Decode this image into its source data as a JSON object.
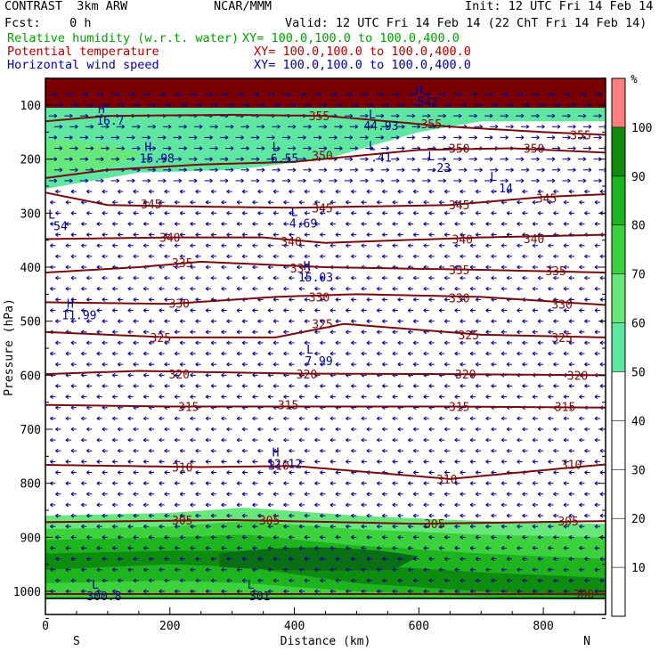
{
  "header": {
    "title": "CONTRAST  3km ARW",
    "org": "NCAR/MMM",
    "init": "Init: 12 UTC Fri 14 Feb 14",
    "fcst": "Fcst:    0 h",
    "valid": "Valid: 12 UTC Fri 14 Feb 14 (22 ChT Fri 14 Feb 14)",
    "fields": [
      {
        "name": "Relative humidity (w.r.t. water)",
        "xy": "XY= 100.0,100.0 to 100.0,400.0"
      },
      {
        "name": "Potential temperature",
        "xy": "XY= 100.0,100.0 to 100.0,400.0"
      },
      {
        "name": "Horizontal wind speed",
        "xy": "XY= 100.0,100.0 to 100.0,400.0"
      }
    ]
  },
  "colors": {
    "rh": [
      "#ffffff",
      "#5fe6a0",
      "#66e87a",
      "#3cd23c",
      "#1eb41e",
      "#0e8c0e",
      "#0a6e14",
      "#ff8080",
      "#ffb0b0"
    ],
    "theta": "#7a0a0a",
    "wind": "#000090",
    "stratosphere": "#7a0000"
  },
  "chart_data": {
    "type": "heatmap",
    "xlabel": "Distance (km)",
    "ylabel": "Pressure (hPa)",
    "xlim": [
      0,
      900
    ],
    "ylim": [
      1050,
      50
    ],
    "xticks": [
      0,
      200,
      400,
      600,
      800
    ],
    "yticks": [
      100,
      200,
      300,
      400,
      500,
      600,
      700,
      800,
      900,
      1000
    ],
    "end_labels": {
      "left": "S",
      "right": "N"
    },
    "colorbar": {
      "unit": "%",
      "levels": [
        10,
        20,
        30,
        40,
        50,
        60,
        70,
        80,
        90,
        100
      ],
      "colors": [
        "#ffffff",
        "#ffffff",
        "#ffffff",
        "#ffffff",
        "#ffffff",
        "#5fe6a0",
        "#66e87a",
        "#3cd23c",
        "#1eb41e",
        "#0e8c0e",
        "#ff8080"
      ]
    },
    "theta_contours": [
      {
        "label": "300",
        "pressure": [
          1005,
          1005
        ],
        "x": [
          0,
          900
        ]
      },
      {
        "label": "305",
        "pressure": [
          872,
          868,
          875,
          870
        ],
        "x": [
          0,
          300,
          600,
          900
        ]
      },
      {
        "label": "310",
        "pressure": [
          766,
          770,
          768,
          792,
          765
        ],
        "x": [
          0,
          250,
          400,
          650,
          900
        ]
      },
      {
        "label": "315",
        "pressure": [
          655,
          658,
          658,
          658,
          660
        ],
        "x": [
          0,
          200,
          400,
          650,
          900
        ]
      },
      {
        "label": "320",
        "pressure": [
          598,
          592,
          597,
          598,
          600
        ],
        "x": [
          0,
          150,
          400,
          650,
          900
        ]
      },
      {
        "label": "325",
        "pressure": [
          520,
          530,
          530,
          505,
          525,
          530
        ],
        "x": [
          0,
          200,
          370,
          480,
          700,
          900
        ]
      },
      {
        "label": "330",
        "pressure": [
          465,
          468,
          455,
          450,
          455,
          470
        ],
        "x": [
          0,
          200,
          370,
          500,
          700,
          900
        ]
      },
      {
        "label": "335",
        "pressure": [
          410,
          400,
          390,
          400,
          405,
          410
        ],
        "x": [
          0,
          150,
          250,
          450,
          700,
          900
        ]
      },
      {
        "label": "340",
        "pressure": [
          348,
          345,
          345,
          355,
          345,
          340
        ],
        "x": [
          0,
          200,
          350,
          450,
          700,
          900
        ]
      },
      {
        "label": "345",
        "pressure": [
          262,
          285,
          288,
          290,
          285,
          270,
          265
        ],
        "x": [
          0,
          100,
          250,
          400,
          650,
          800,
          900
        ]
      },
      {
        "label": "350",
        "pressure": [
          235,
          220,
          210,
          205,
          183,
          180,
          188
        ],
        "x": [
          0,
          100,
          250,
          400,
          600,
          750,
          900
        ]
      },
      {
        "label": "355",
        "pressure": [
          130,
          120,
          118,
          120,
          140,
          150,
          155
        ],
        "x": [
          0,
          100,
          300,
          450,
          650,
          800,
          900
        ]
      }
    ],
    "contour_labels": [
      {
        "text": "355",
        "x": 440,
        "p": 120
      },
      {
        "text": "355",
        "x": 620,
        "p": 135
      },
      {
        "text": "355",
        "x": 860,
        "p": 155
      },
      {
        "text": "350",
        "x": 445,
        "p": 193
      },
      {
        "text": "350",
        "x": 665,
        "p": 180
      },
      {
        "text": "350",
        "x": 785,
        "p": 180
      },
      {
        "text": "345",
        "x": 170,
        "p": 283
      },
      {
        "text": "345",
        "x": 445,
        "p": 290
      },
      {
        "text": "345",
        "x": 665,
        "p": 285
      },
      {
        "text": "345",
        "x": 805,
        "p": 272
      },
      {
        "text": "340",
        "x": 200,
        "p": 345
      },
      {
        "text": "340",
        "x": 395,
        "p": 352
      },
      {
        "text": "340",
        "x": 670,
        "p": 348
      },
      {
        "text": "340",
        "x": 785,
        "p": 347
      },
      {
        "text": "335",
        "x": 220,
        "p": 392
      },
      {
        "text": "335",
        "x": 410,
        "p": 402
      },
      {
        "text": "335",
        "x": 665,
        "p": 405
      },
      {
        "text": "335",
        "x": 820,
        "p": 407
      },
      {
        "text": "330",
        "x": 215,
        "p": 467
      },
      {
        "text": "330",
        "x": 440,
        "p": 455
      },
      {
        "text": "330",
        "x": 665,
        "p": 457
      },
      {
        "text": "330",
        "x": 830,
        "p": 468
      },
      {
        "text": "325",
        "x": 185,
        "p": 530
      },
      {
        "text": "325",
        "x": 445,
        "p": 505
      },
      {
        "text": "325",
        "x": 680,
        "p": 525
      },
      {
        "text": "325",
        "x": 830,
        "p": 530
      },
      {
        "text": "320",
        "x": 215,
        "p": 598
      },
      {
        "text": "320",
        "x": 420,
        "p": 598
      },
      {
        "text": "320",
        "x": 675,
        "p": 598
      },
      {
        "text": "320",
        "x": 855,
        "p": 600
      },
      {
        "text": "315",
        "x": 230,
        "p": 658
      },
      {
        "text": "315",
        "x": 390,
        "p": 655
      },
      {
        "text": "315",
        "x": 665,
        "p": 658
      },
      {
        "text": "315",
        "x": 835,
        "p": 658
      },
      {
        "text": "310",
        "x": 220,
        "p": 770
      },
      {
        "text": "310",
        "x": 375,
        "p": 767
      },
      {
        "text": "310",
        "x": 645,
        "p": 792
      },
      {
        "text": "310",
        "x": 845,
        "p": 765
      },
      {
        "text": "305",
        "x": 220,
        "p": 868
      },
      {
        "text": "305",
        "x": 360,
        "p": 868
      },
      {
        "text": "305",
        "x": 625,
        "p": 875
      },
      {
        "text": "305",
        "x": 840,
        "p": 870
      },
      {
        "text": "300",
        "x": 865,
        "p": 1005
      }
    ],
    "extrema": [
      {
        "type": "H",
        "value": "16.7",
        "x": 90,
        "p": 115
      },
      {
        "type": "H",
        "value": "15.98",
        "x": 165,
        "p": 185
      },
      {
        "type": "L",
        "value": "6.55",
        "x": 370,
        "p": 185
      },
      {
        "type": "L",
        "value": ".41",
        "x": 525,
        "p": 183
      },
      {
        "type": "L",
        "value": ".23",
        "x": 620,
        "p": 202
      },
      {
        "type": "L",
        "value": ".14",
        "x": 720,
        "p": 240
      },
      {
        "type": "L",
        "value": "4.69",
        "x": 400,
        "p": 305
      },
      {
        "type": "H",
        "value": "15.03",
        "x": 420,
        "p": 405
      },
      {
        "type": "H",
        "value": "11.99",
        "x": 40,
        "p": 475
      },
      {
        "type": "L",
        "value": "7.99",
        "x": 425,
        "p": 560
      },
      {
        "type": "H",
        "value": "12.12",
        "x": 370,
        "p": 750
      },
      {
        "type": "L",
        "value": "300.8",
        "x": 80,
        "p": 995
      },
      {
        "type": "L",
        "value": "301",
        "x": 330,
        "p": 995
      },
      {
        "type": "L",
        "value": "44.93",
        "x": 525,
        "p": 125
      },
      {
        "type": "H",
        "value": "542",
        "x": 600,
        "p": 80
      },
      {
        "type": "L",
        "value": "54",
        "x": 10,
        "p": 310
      }
    ],
    "rh_layers": [
      {
        "level": 50,
        "top": [
          100,
          100,
          100,
          100,
          100,
          100
        ],
        "bottom": [
          255,
          225,
          220,
          200,
          150,
          130
        ],
        "x": [
          0,
          150,
          300,
          450,
          600,
          700
        ]
      },
      {
        "level": 50,
        "top": [
          860,
          850,
          845,
          860,
          870
        ],
        "bottom": [
          1030,
          1030,
          1030,
          1030,
          1030
        ],
        "x": [
          0,
          250,
          450,
          700,
          900
        ]
      }
    ]
  }
}
